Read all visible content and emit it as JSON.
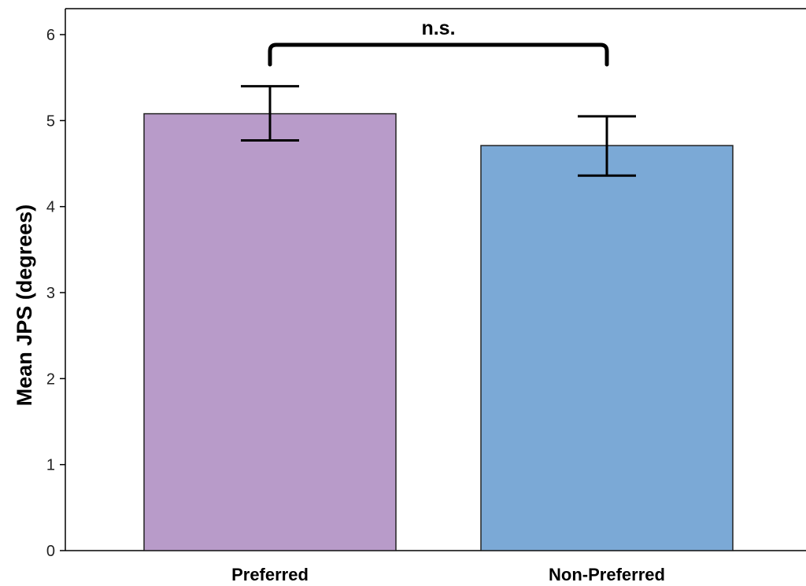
{
  "chart_data": {
    "type": "bar",
    "categories": [
      "Preferred",
      "Non-Preferred"
    ],
    "values": [
      5.08,
      4.71
    ],
    "error_bars": [
      {
        "lower": 4.77,
        "upper": 5.4
      },
      {
        "lower": 4.36,
        "upper": 5.05
      }
    ],
    "colors": [
      "#b89bc9",
      "#7ba9d6"
    ],
    "ylabel": "Mean JPS (degrees)",
    "xlabel": "",
    "ylim": [
      0,
      6
    ],
    "yticks": [
      0,
      1,
      2,
      3,
      4,
      5,
      6
    ],
    "grid": false,
    "annotation": {
      "text": "n.s.",
      "from": "Preferred",
      "to": "Non-Preferred"
    }
  }
}
